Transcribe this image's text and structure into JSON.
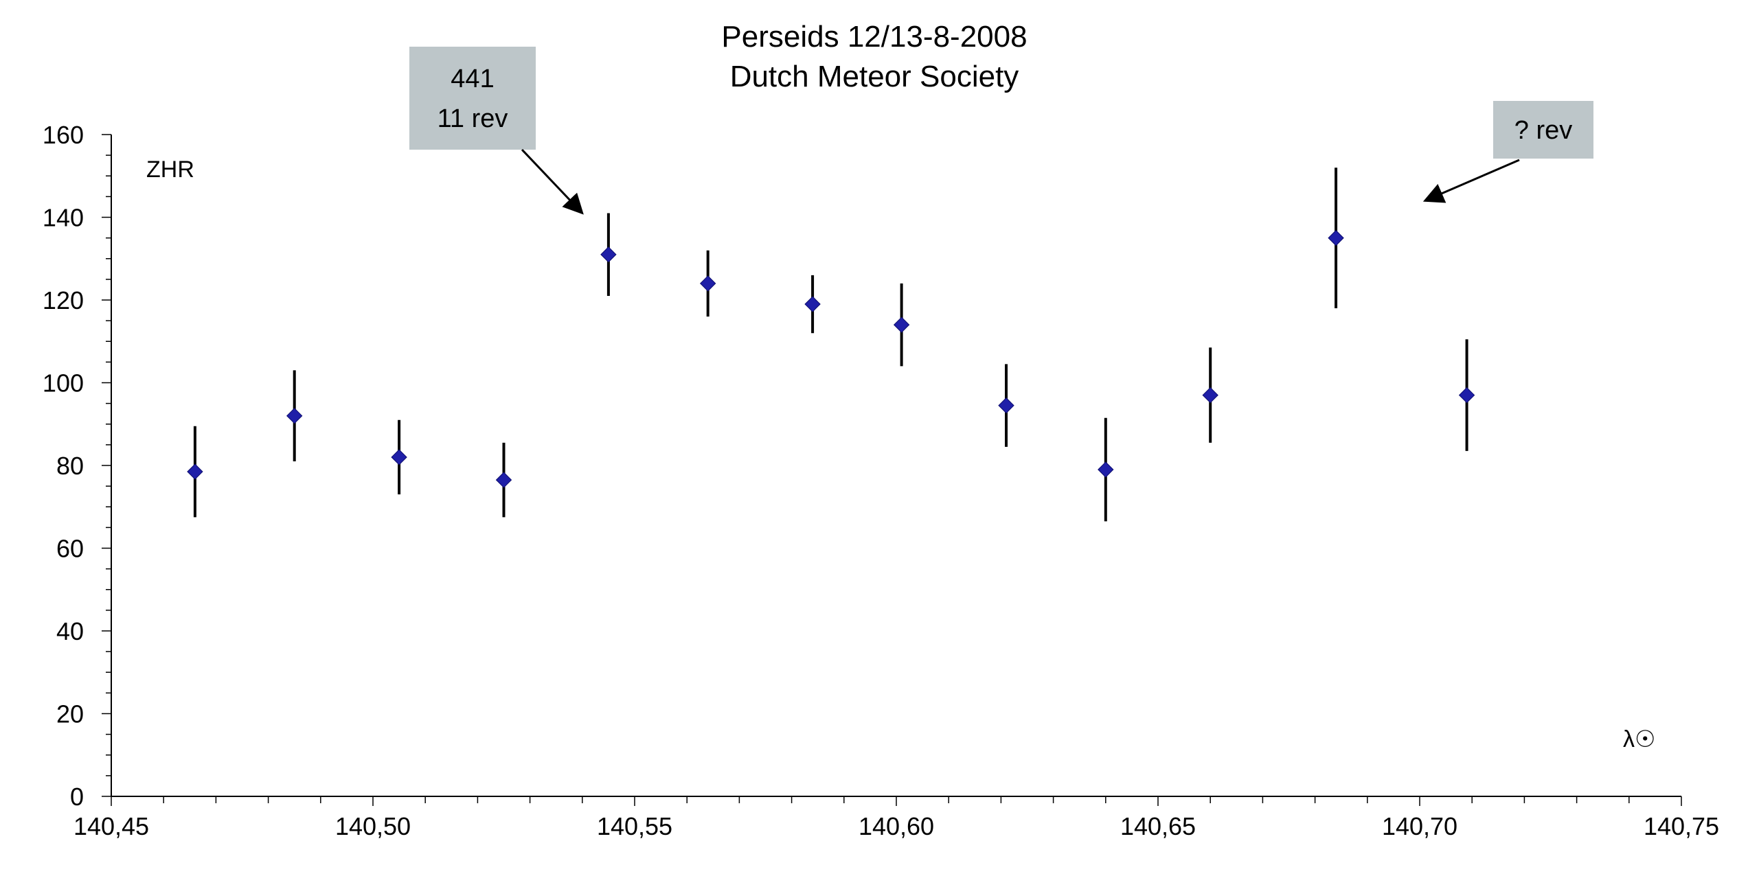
{
  "chart_data": {
    "type": "scatter",
    "title": "Perseids 12/13-8-2008",
    "subtitle": "Dutch Meteor Society",
    "ylabel": "ZHR",
    "xlabel": "λ☉",
    "xlim": [
      140.45,
      140.75
    ],
    "ylim": [
      0,
      160
    ],
    "x_ticks": [
      "140,45",
      "140,50",
      "140,55",
      "140,60",
      "140,65",
      "140,70",
      "140,75"
    ],
    "y_ticks": [
      "0",
      "20",
      "40",
      "60",
      "80",
      "100",
      "120",
      "140",
      "160"
    ],
    "grid": false,
    "legend": "none",
    "marker_color": "#1f1fa8",
    "series": [
      {
        "points": [
          {
            "x": 140.466,
            "y": 78.5,
            "err": 11
          },
          {
            "x": 140.485,
            "y": 92,
            "err": 11
          },
          {
            "x": 140.505,
            "y": 82,
            "err": 9
          },
          {
            "x": 140.525,
            "y": 76.5,
            "err": 9
          },
          {
            "x": 140.545,
            "y": 131,
            "err": 10
          },
          {
            "x": 140.564,
            "y": 124,
            "err": 8
          },
          {
            "x": 140.584,
            "y": 119,
            "err": 7
          },
          {
            "x": 140.601,
            "y": 114,
            "err": 10
          },
          {
            "x": 140.621,
            "y": 94.5,
            "err": 10
          },
          {
            "x": 140.64,
            "y": 79,
            "err": 12.5
          },
          {
            "x": 140.66,
            "y": 97,
            "err": 11.5
          },
          {
            "x": 140.684,
            "y": 135,
            "err": 17
          },
          {
            "x": 140.709,
            "y": 97,
            "err": 13.5
          }
        ]
      }
    ],
    "annotations": [
      {
        "lines": [
          "441",
          "11 rev"
        ],
        "target": {
          "x": 140.54,
          "y": 141
        }
      },
      {
        "lines": [
          "? rev"
        ],
        "target": {
          "x": 140.701,
          "y": 144
        }
      }
    ]
  }
}
